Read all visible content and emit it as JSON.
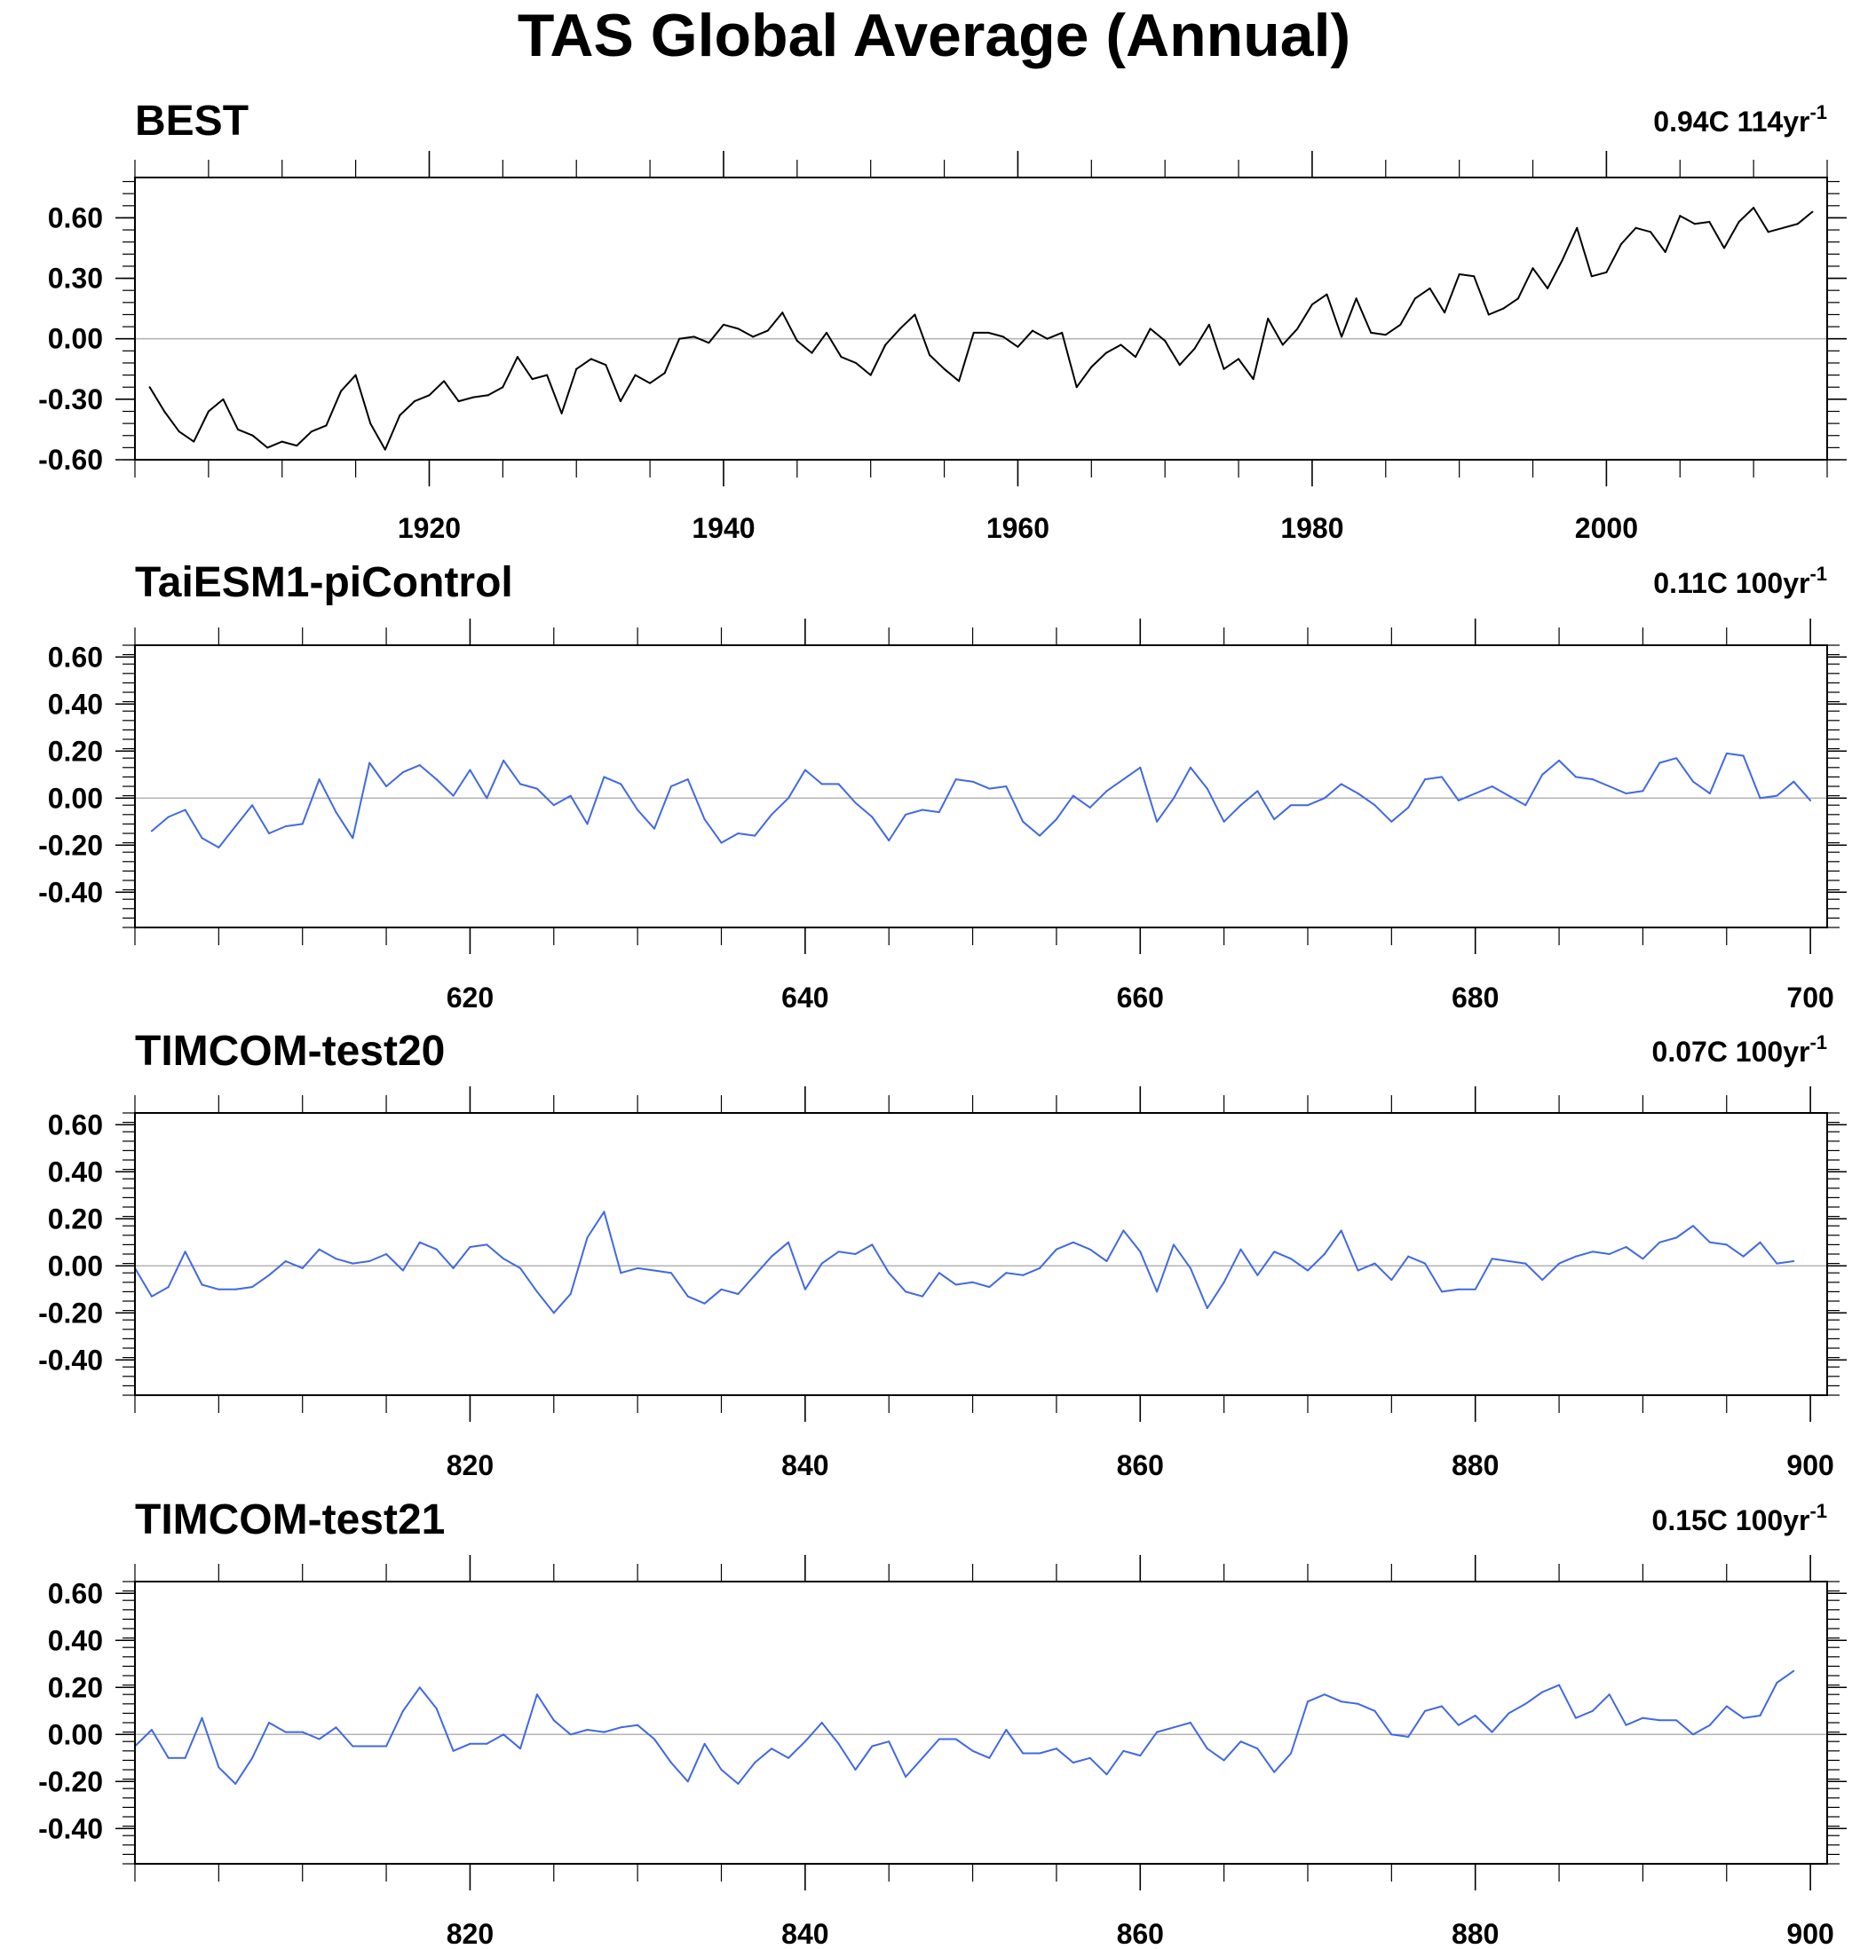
{
  "figure": {
    "title": "TAS Global Average (Annual)"
  },
  "chart_data": [
    {
      "type": "line",
      "title": "BEST",
      "trend": {
        "value": "0.94C 114yr",
        "exponent": "-1"
      },
      "color": "#000000",
      "xlim": [
        1900,
        2015
      ],
      "ylim": [
        -0.6,
        0.8
      ],
      "yticks": [
        -0.6,
        -0.3,
        0.0,
        0.3,
        0.6
      ],
      "ytick_labels": [
        "-0.60",
        "-0.30",
        "0.00",
        "0.30",
        "0.60"
      ],
      "xticks": [
        1920,
        1940,
        1960,
        1980,
        2000
      ],
      "xtick_labels": [
        "1920",
        "1940",
        "1960",
        "1980",
        "2000"
      ],
      "zero_line": true,
      "x_start": 1901,
      "x_step": 1,
      "values": [
        -0.24,
        -0.36,
        -0.46,
        -0.51,
        -0.36,
        -0.3,
        -0.45,
        -0.48,
        -0.54,
        -0.51,
        -0.53,
        -0.46,
        -0.43,
        -0.26,
        -0.18,
        -0.42,
        -0.55,
        -0.38,
        -0.31,
        -0.28,
        -0.21,
        -0.31,
        -0.29,
        -0.28,
        -0.24,
        -0.09,
        -0.2,
        -0.18,
        -0.37,
        -0.15,
        -0.1,
        -0.13,
        -0.31,
        -0.18,
        -0.22,
        -0.17,
        0.0,
        0.01,
        -0.02,
        0.07,
        0.05,
        0.01,
        0.04,
        0.13,
        -0.01,
        -0.07,
        0.03,
        -0.09,
        -0.12,
        -0.18,
        -0.03,
        0.05,
        0.12,
        -0.08,
        -0.15,
        -0.21,
        0.03,
        0.03,
        0.01,
        -0.04,
        0.04,
        0.0,
        0.03,
        -0.24,
        -0.14,
        -0.07,
        -0.03,
        -0.09,
        0.05,
        -0.01,
        -0.13,
        -0.05,
        0.07,
        -0.15,
        -0.1,
        -0.2,
        0.1,
        -0.03,
        0.05,
        0.17,
        0.22,
        0.01,
        0.2,
        0.03,
        0.02,
        0.07,
        0.2,
        0.25,
        0.13,
        0.32,
        0.31,
        0.12,
        0.15,
        0.2,
        0.35,
        0.25,
        0.39,
        0.55,
        0.31,
        0.33,
        0.47,
        0.55,
        0.53,
        0.43,
        0.61,
        0.57,
        0.58,
        0.45,
        0.58,
        0.65,
        0.53,
        0.55,
        0.57,
        0.63
      ]
    },
    {
      "type": "line",
      "title": "TaiESM1-piControl",
      "trend": {
        "value": "0.11C 100yr",
        "exponent": "-1"
      },
      "color": "#4169e1",
      "xlim": [
        600,
        701
      ],
      "ylim": [
        -0.55,
        0.65
      ],
      "yticks": [
        -0.4,
        -0.2,
        0.0,
        0.2,
        0.4,
        0.6
      ],
      "ytick_labels": [
        "-0.40",
        "-0.20",
        "0.00",
        "0.20",
        "0.40",
        "0.60"
      ],
      "xticks": [
        620,
        640,
        660,
        680,
        700
      ],
      "xtick_labels": [
        "620",
        "640",
        "660",
        "680",
        "700"
      ],
      "zero_line": true,
      "x_start": 601,
      "x_step": 1,
      "values": [
        -0.14,
        -0.08,
        -0.05,
        -0.17,
        -0.21,
        -0.12,
        -0.03,
        -0.15,
        -0.12,
        -0.11,
        0.08,
        -0.06,
        -0.17,
        0.15,
        0.05,
        0.11,
        0.14,
        0.08,
        0.01,
        0.12,
        0.0,
        0.16,
        0.06,
        0.04,
        -0.03,
        0.01,
        -0.11,
        0.09,
        0.06,
        -0.05,
        -0.13,
        0.05,
        0.08,
        -0.09,
        -0.19,
        -0.15,
        -0.16,
        -0.07,
        0.0,
        0.12,
        0.06,
        0.06,
        -0.02,
        -0.08,
        -0.18,
        -0.07,
        -0.05,
        -0.06,
        0.08,
        0.07,
        0.04,
        0.05,
        -0.1,
        -0.16,
        -0.09,
        0.01,
        -0.04,
        0.03,
        0.08,
        0.13,
        -0.1,
        0.0,
        0.13,
        0.04,
        -0.1,
        -0.03,
        0.03,
        -0.09,
        -0.03,
        -0.03,
        0.0,
        0.06,
        0.02,
        -0.03,
        -0.1,
        -0.04,
        0.08,
        0.09,
        -0.01,
        0.02,
        0.05,
        0.01,
        -0.03,
        0.1,
        0.16,
        0.09,
        0.08,
        0.05,
        0.02,
        0.03,
        0.15,
        0.17,
        0.07,
        0.02,
        0.19,
        0.18,
        0.0,
        0.01,
        0.07,
        -0.01
      ]
    },
    {
      "type": "line",
      "title": "TIMCOM-test20",
      "trend": {
        "value": "0.07C 100yr",
        "exponent": "-1"
      },
      "color": "#4169e1",
      "xlim": [
        800,
        901
      ],
      "ylim": [
        -0.55,
        0.65
      ],
      "yticks": [
        -0.4,
        -0.2,
        0.0,
        0.2,
        0.4,
        0.6
      ],
      "ytick_labels": [
        "-0.40",
        "-0.20",
        "0.00",
        "0.20",
        "0.40",
        "0.60"
      ],
      "xticks": [
        820,
        840,
        860,
        880,
        900
      ],
      "xtick_labels": [
        "820",
        "840",
        "860",
        "880",
        "900"
      ],
      "zero_line": true,
      "x_start": 800,
      "x_step": 1,
      "values": [
        -0.01,
        -0.13,
        -0.09,
        0.06,
        -0.08,
        -0.1,
        -0.1,
        -0.09,
        -0.04,
        0.02,
        -0.01,
        0.07,
        0.03,
        0.01,
        0.02,
        0.05,
        -0.02,
        0.1,
        0.07,
        -0.01,
        0.08,
        0.09,
        0.03,
        -0.01,
        -0.11,
        -0.2,
        -0.12,
        0.12,
        0.23,
        -0.03,
        -0.01,
        -0.02,
        -0.03,
        -0.13,
        -0.16,
        -0.1,
        -0.12,
        -0.04,
        0.04,
        0.1,
        -0.1,
        0.01,
        0.06,
        0.05,
        0.09,
        -0.03,
        -0.11,
        -0.13,
        -0.03,
        -0.08,
        -0.07,
        -0.09,
        -0.03,
        -0.04,
        -0.01,
        0.07,
        0.1,
        0.07,
        0.02,
        0.15,
        0.06,
        -0.11,
        0.09,
        -0.01,
        -0.18,
        -0.07,
        0.07,
        -0.04,
        0.06,
        0.03,
        -0.02,
        0.05,
        0.15,
        -0.02,
        0.01,
        -0.06,
        0.04,
        0.01,
        -0.11,
        -0.1,
        -0.1,
        0.03,
        0.02,
        0.01,
        -0.06,
        0.01,
        0.04,
        0.06,
        0.05,
        0.08,
        0.03,
        0.1,
        0.12,
        0.17,
        0.1,
        0.09,
        0.04,
        0.1,
        0.01,
        0.02
      ]
    },
    {
      "type": "line",
      "title": "TIMCOM-test21",
      "trend": {
        "value": "0.15C 100yr",
        "exponent": "-1"
      },
      "color": "#4169e1",
      "xlim": [
        800,
        901
      ],
      "ylim": [
        -0.55,
        0.65
      ],
      "yticks": [
        -0.4,
        -0.2,
        0.0,
        0.2,
        0.4,
        0.6
      ],
      "ytick_labels": [
        "-0.40",
        "-0.20",
        "0.00",
        "0.20",
        "0.40",
        "0.60"
      ],
      "xticks": [
        820,
        840,
        860,
        880,
        900
      ],
      "xtick_labels": [
        "820",
        "840",
        "860",
        "880",
        "900"
      ],
      "zero_line": true,
      "x_start": 800,
      "x_step": 1,
      "values": [
        -0.05,
        0.02,
        -0.1,
        -0.1,
        0.07,
        -0.14,
        -0.21,
        -0.1,
        0.05,
        0.01,
        0.01,
        -0.02,
        0.03,
        -0.05,
        -0.05,
        -0.05,
        0.1,
        0.2,
        0.11,
        -0.07,
        -0.04,
        -0.04,
        0.0,
        -0.06,
        0.17,
        0.06,
        0.0,
        0.02,
        0.01,
        0.03,
        0.04,
        -0.02,
        -0.12,
        -0.2,
        -0.04,
        -0.15,
        -0.21,
        -0.12,
        -0.06,
        -0.1,
        -0.03,
        0.05,
        -0.04,
        -0.15,
        -0.05,
        -0.03,
        -0.18,
        -0.1,
        -0.02,
        -0.02,
        -0.07,
        -0.1,
        0.02,
        -0.08,
        -0.08,
        -0.06,
        -0.12,
        -0.1,
        -0.17,
        -0.07,
        -0.09,
        0.01,
        0.03,
        0.05,
        -0.06,
        -0.11,
        -0.03,
        -0.06,
        -0.16,
        -0.08,
        0.14,
        0.17,
        0.14,
        0.13,
        0.1,
        0.0,
        -0.01,
        0.1,
        0.12,
        0.04,
        0.08,
        0.01,
        0.09,
        0.13,
        0.18,
        0.21,
        0.07,
        0.1,
        0.17,
        0.04,
        0.07,
        0.06,
        0.06,
        0.0,
        0.04,
        0.12,
        0.07,
        0.08,
        0.22,
        0.27
      ]
    }
  ]
}
